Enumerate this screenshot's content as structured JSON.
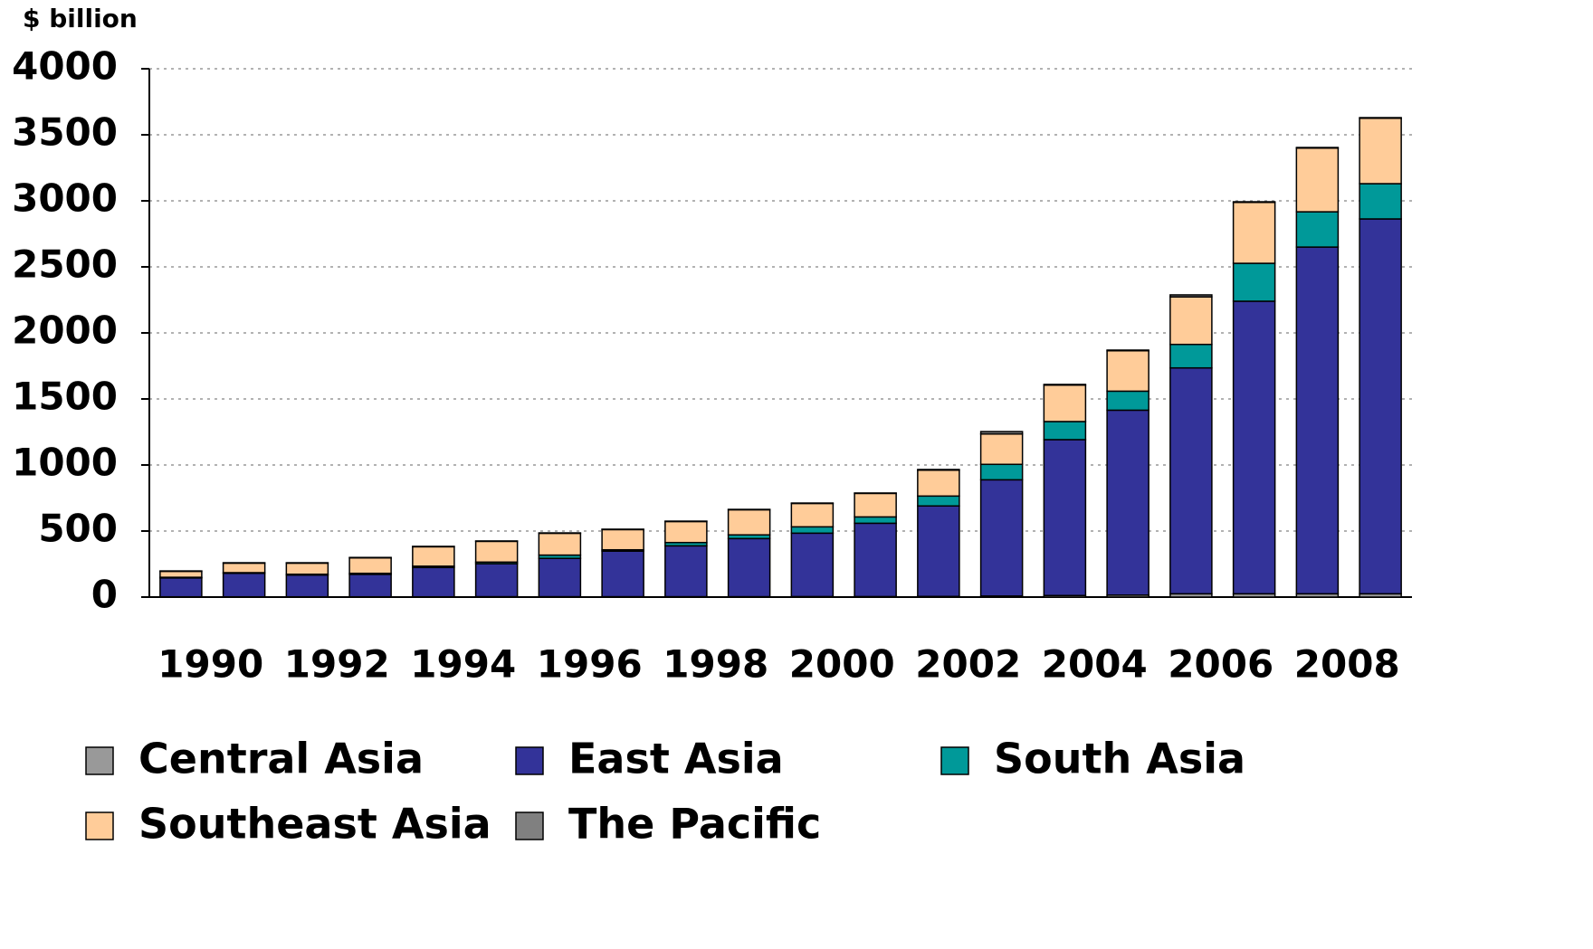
{
  "chart_data": {
    "type": "stacked_bar",
    "y_label": "$ billion",
    "categories": [
      "1990",
      null,
      "1992",
      null,
      "1994",
      null,
      "1996",
      null,
      "1998",
      null,
      "2000",
      null,
      "2002",
      null,
      "2004",
      null,
      "2006",
      null,
      "2008",
      null
    ],
    "series": [
      {
        "name": "Central Asia",
        "color": "#999999",
        "values": [
          2,
          2,
          2,
          2,
          2,
          3,
          3,
          3,
          3,
          3,
          4,
          4,
          5,
          8,
          12,
          15,
          25,
          25,
          25,
          25
        ]
      },
      {
        "name": "East Asia",
        "color": "#333399",
        "values": [
          143,
          178,
          165,
          170,
          222,
          250,
          290,
          345,
          385,
          440,
          480,
          555,
          685,
          880,
          1180,
          1400,
          1710,
          2215,
          2625,
          2838
        ]
      },
      {
        "name": "South Asia",
        "color": "#009999",
        "values": [
          5,
          5,
          6,
          8,
          10,
          12,
          25,
          10,
          25,
          28,
          48,
          48,
          75,
          117,
          137,
          144,
          178,
          287,
          267,
          267
        ]
      },
      {
        "name": "Southeast Asia",
        "color": "#ffcc99",
        "values": [
          45,
          72,
          84,
          117,
          147,
          157,
          165,
          153,
          159,
          190,
          177,
          178,
          196,
          230,
          276,
          306,
          360,
          461,
          482,
          495
        ]
      },
      {
        "name": "The Pacific",
        "color": "#808080",
        "values": [
          3,
          3,
          3,
          3,
          3,
          3,
          3,
          3,
          3,
          3,
          3,
          3,
          5,
          18,
          5,
          5,
          15,
          5,
          5,
          5
        ]
      }
    ],
    "ylim": [
      0,
      4000
    ],
    "yticks": [
      0,
      500,
      1000,
      1500,
      2000,
      2500,
      3000,
      3500,
      4000
    ],
    "grid": true
  }
}
